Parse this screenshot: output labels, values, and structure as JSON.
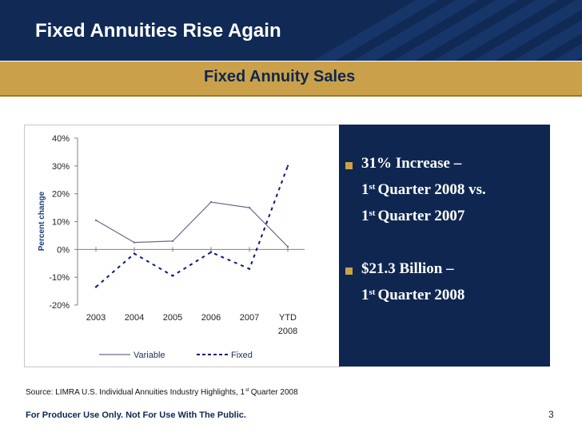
{
  "header": {
    "title": "Fixed Annuities Rise Again"
  },
  "section": {
    "title": "Fixed Annuity Sales"
  },
  "chart_data": {
    "type": "line",
    "title": "",
    "xlabel": "",
    "ylabel": "Percent change",
    "categories": [
      "2003",
      "2004",
      "2005",
      "2006",
      "2007",
      "YTD 2008"
    ],
    "category_labels": [
      [
        "2003"
      ],
      [
        "2004"
      ],
      [
        "2005"
      ],
      [
        "2006"
      ],
      [
        "2007"
      ],
      [
        "YTD",
        "2008"
      ]
    ],
    "y_ticks": [
      "40%",
      "30%",
      "20%",
      "10%",
      "0%",
      "-10%",
      "-20%"
    ],
    "ylim": [
      -20,
      40
    ],
    "grid": false,
    "legend_position": "bottom",
    "series": [
      {
        "name": "Variable",
        "style": "solid",
        "color": "#6b6b8f",
        "values": [
          10.5,
          2.5,
          3.0,
          17.0,
          15.0,
          1.0
        ]
      },
      {
        "name": "Fixed",
        "style": "dashed",
        "color": "#0a1a7a",
        "values": [
          -13.5,
          -1.5,
          -9.5,
          -1.0,
          -7.0,
          30.0
        ]
      }
    ]
  },
  "bullets": [
    {
      "lines": [
        {
          "pre": "",
          "sup": "",
          "text": "31% Increase –"
        },
        {
          "pre": "1",
          "sup": "st",
          "text": "Quarter 2008 vs."
        },
        {
          "pre": "1",
          "sup": "st",
          "text": "Quarter 2007"
        }
      ]
    },
    {
      "lines": [
        {
          "pre": "",
          "sup": "",
          "text": "$21.3 Billion –"
        },
        {
          "pre": "1",
          "sup": "st",
          "text": "Quarter 2008"
        }
      ]
    }
  ],
  "source": {
    "prefix": "Source: LIMRA U.S. Individual Annuities Industry Highlights,  1",
    "sup": "st",
    "suffix": "Quarter 2008"
  },
  "footer": {
    "disclaimer": "For Producer Use Only. Not For Use With The Public."
  },
  "page": {
    "number": "3"
  },
  "colors": {
    "navy": "#0f2750",
    "gold": "#caa14a",
    "bullet": "#c9a24c"
  }
}
